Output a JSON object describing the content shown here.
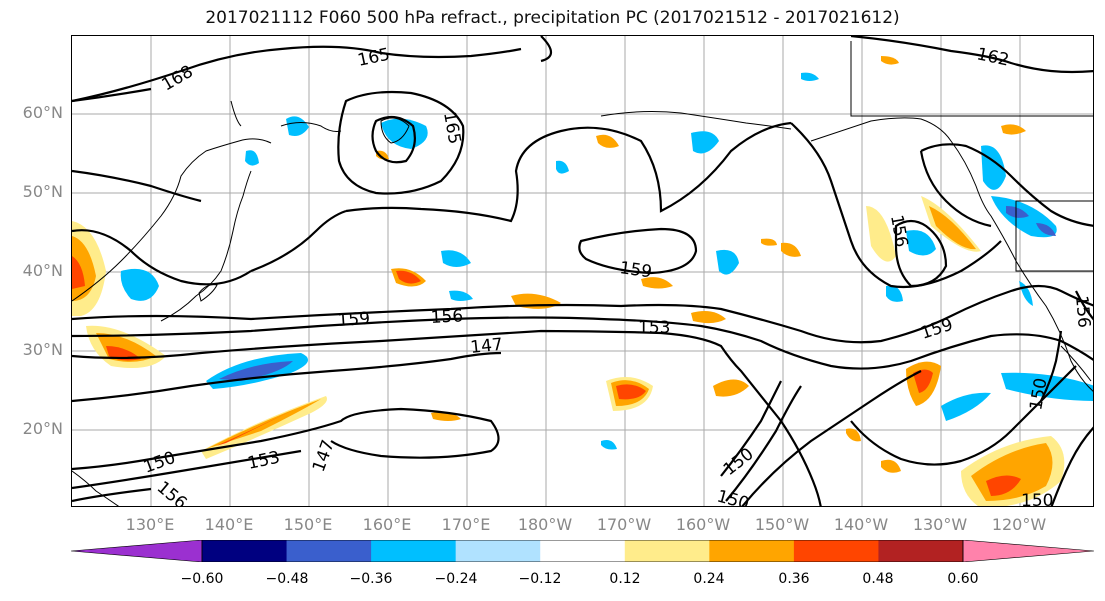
{
  "title": "2017021112 F060 500 hPa refract., precipitation PC (2017021512 - 2017021612)",
  "lat_labels": [
    "60°N",
    "50°N",
    "40°N",
    "30°N",
    "20°N"
  ],
  "lon_labels": [
    "130°E",
    "140°E",
    "150°E",
    "160°E",
    "170°E",
    "180°W",
    "170°W",
    "160°W",
    "150°W",
    "140°W",
    "130°W",
    "120°W"
  ],
  "contour_labels": [
    "168",
    "165",
    "165",
    "162",
    "156",
    "159",
    "159",
    "156",
    "153",
    "147",
    "159",
    "156",
    "150",
    "150",
    "150",
    "147",
    "153",
    "150",
    "156",
    "150"
  ],
  "colorbar": {
    "ticks": [
      "−0.60",
      "−0.48",
      "−0.36",
      "−0.24",
      "−0.12",
      "0.12",
      "0.24",
      "0.36",
      "0.48",
      "0.60"
    ],
    "colors": [
      "#9b30d0",
      "#000080",
      "#3a5fcd",
      "#00bfff",
      "#b0e2ff",
      "#ffffff",
      "#ffec8b",
      "#ffa500",
      "#ff4500",
      "#b22222",
      "#ff82ab"
    ]
  }
}
